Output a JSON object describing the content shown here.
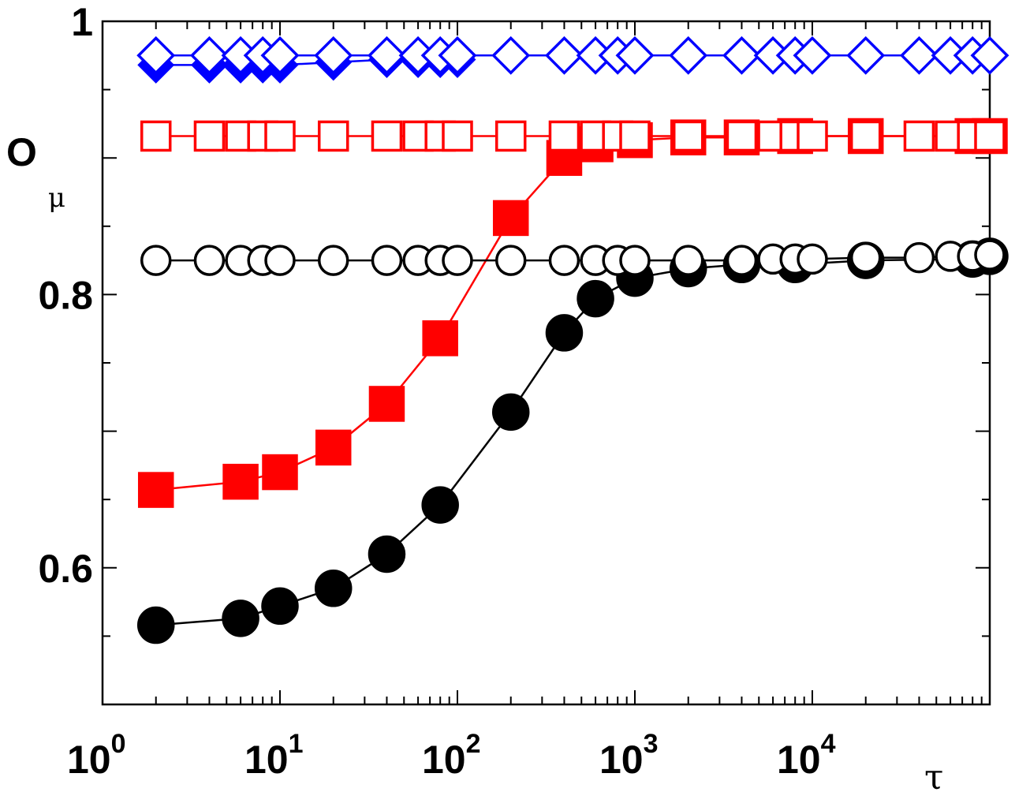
{
  "chart_data": {
    "type": "line",
    "xscale": "log",
    "xlim": [
      1,
      100000
    ],
    "ylim": [
      0.5,
      1.0
    ],
    "ylabel": "O",
    "ylabel_sub": "μ",
    "xlabel": "τ",
    "y_ticks": [
      {
        "value": 0.6,
        "label": "0.6"
      },
      {
        "value": 0.8,
        "label": "0.8"
      },
      {
        "value": 1.0,
        "label": "1"
      }
    ],
    "x_ticks": [
      {
        "value": 1,
        "base": "10",
        "exp": "0"
      },
      {
        "value": 10,
        "base": "10",
        "exp": "1"
      },
      {
        "value": 100,
        "base": "10",
        "exp": "2"
      },
      {
        "value": 1000,
        "base": "10",
        "exp": "3"
      },
      {
        "value": 10000,
        "base": "10",
        "exp": "4"
      }
    ],
    "series": [
      {
        "marker": "circle",
        "filled": true,
        "color": "#000000",
        "x": [
          2,
          6,
          10,
          20,
          40,
          80,
          200,
          400,
          600,
          1000,
          2000,
          4000,
          8000,
          20000,
          80000,
          100000
        ],
        "y": [
          0.558,
          0.563,
          0.572,
          0.585,
          0.61,
          0.646,
          0.714,
          0.772,
          0.797,
          0.812,
          0.819,
          0.822,
          0.822,
          0.825,
          0.826,
          0.828
        ]
      },
      {
        "marker": "square",
        "filled": true,
        "color": "#ff0000",
        "x": [
          2,
          6,
          10,
          20,
          40,
          80,
          200,
          400,
          600,
          1000,
          2000,
          4000,
          8000,
          20000,
          80000,
          100000
        ],
        "y": [
          0.657,
          0.663,
          0.67,
          0.688,
          0.72,
          0.768,
          0.856,
          0.9,
          0.91,
          0.913,
          0.915,
          0.915,
          0.916,
          0.916,
          0.916,
          0.916
        ]
      },
      {
        "marker": "diamond",
        "filled": true,
        "color": "#0000ff",
        "x": [
          2,
          4,
          6,
          8,
          10,
          20,
          40,
          60,
          80,
          100
        ],
        "y": [
          0.968,
          0.968,
          0.968,
          0.968,
          0.968,
          0.97,
          0.972,
          0.972,
          0.972,
          0.972
        ]
      },
      {
        "marker": "circle",
        "filled": false,
        "color": "#000000",
        "x": [
          2,
          4,
          6,
          8,
          10,
          20,
          40,
          60,
          80,
          100,
          200,
          400,
          600,
          800,
          1000,
          2000,
          4000,
          6000,
          8000,
          10000,
          20000,
          40000,
          60000,
          80000,
          100000
        ],
        "y": [
          0.825,
          0.825,
          0.825,
          0.825,
          0.825,
          0.825,
          0.825,
          0.825,
          0.825,
          0.825,
          0.825,
          0.825,
          0.825,
          0.825,
          0.825,
          0.825,
          0.825,
          0.826,
          0.826,
          0.826,
          0.827,
          0.827,
          0.828,
          0.828,
          0.829
        ]
      },
      {
        "marker": "square",
        "filled": false,
        "color": "#ff0000",
        "x": [
          2,
          4,
          6,
          8,
          10,
          20,
          40,
          60,
          80,
          100,
          200,
          400,
          600,
          800,
          1000,
          2000,
          4000,
          6000,
          8000,
          10000,
          20000,
          40000,
          60000,
          80000,
          100000
        ],
        "y": [
          0.916,
          0.916,
          0.916,
          0.916,
          0.916,
          0.916,
          0.916,
          0.916,
          0.916,
          0.916,
          0.916,
          0.916,
          0.916,
          0.916,
          0.916,
          0.916,
          0.916,
          0.916,
          0.916,
          0.916,
          0.916,
          0.916,
          0.916,
          0.916,
          0.916
        ]
      },
      {
        "marker": "diamond",
        "filled": false,
        "color": "#0000ff",
        "x": [
          2,
          4,
          6,
          8,
          10,
          20,
          40,
          60,
          80,
          100,
          200,
          400,
          600,
          800,
          1000,
          2000,
          4000,
          6000,
          8000,
          10000,
          20000,
          40000,
          60000,
          80000,
          100000
        ],
        "y": [
          0.975,
          0.975,
          0.975,
          0.975,
          0.975,
          0.975,
          0.975,
          0.975,
          0.975,
          0.975,
          0.975,
          0.975,
          0.975,
          0.975,
          0.975,
          0.975,
          0.975,
          0.975,
          0.975,
          0.975,
          0.975,
          0.975,
          0.975,
          0.975,
          0.975
        ]
      }
    ]
  }
}
